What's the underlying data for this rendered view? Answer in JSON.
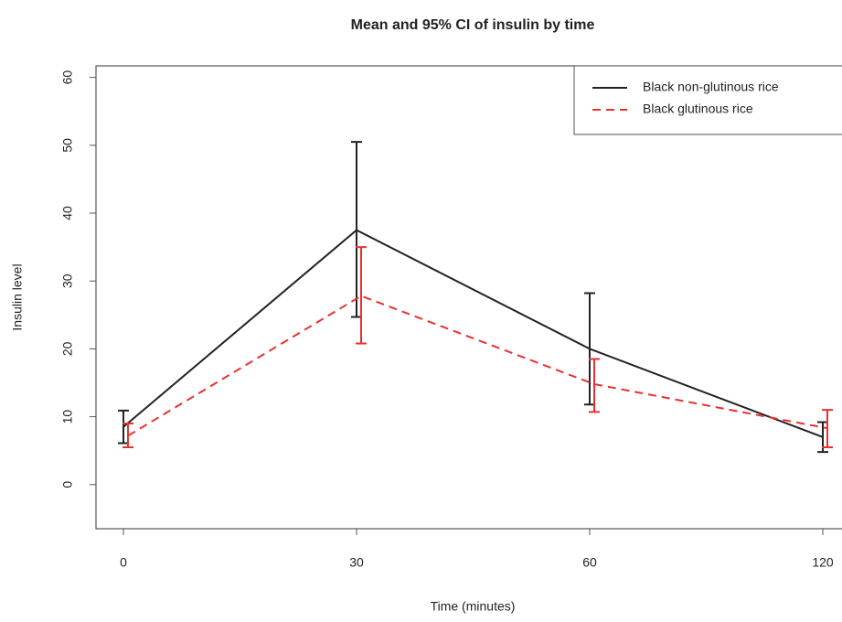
{
  "chart_data": {
    "type": "line",
    "title": "Mean and 95% CI of insulin by time",
    "x_label": "Time (minutes)",
    "y_label": "Insulin level",
    "categories": [
      "0",
      "30",
      "60",
      "120"
    ],
    "ylim": [
      -6.5,
      61.7
    ],
    "yticks": [
      0,
      10,
      20,
      30,
      40,
      50,
      60
    ],
    "legend": "top-right",
    "series": [
      {
        "name": "Black non-glutinous rice",
        "color": "#222222",
        "dash": "solid",
        "values": [
          8.5,
          37.5,
          20,
          7
        ],
        "lower": [
          6.1,
          24.7,
          11.8,
          4.8
        ],
        "upper": [
          10.9,
          50.5,
          28.2,
          9.2
        ]
      },
      {
        "name": "Black glutinous rice",
        "color": "#e8312f",
        "dash": "dashed",
        "values": [
          7.2,
          27.8,
          14.8,
          8.3
        ],
        "lower": [
          5.5,
          20.8,
          10.7,
          5.5
        ],
        "upper": [
          9,
          35,
          18.5,
          11
        ]
      }
    ]
  }
}
